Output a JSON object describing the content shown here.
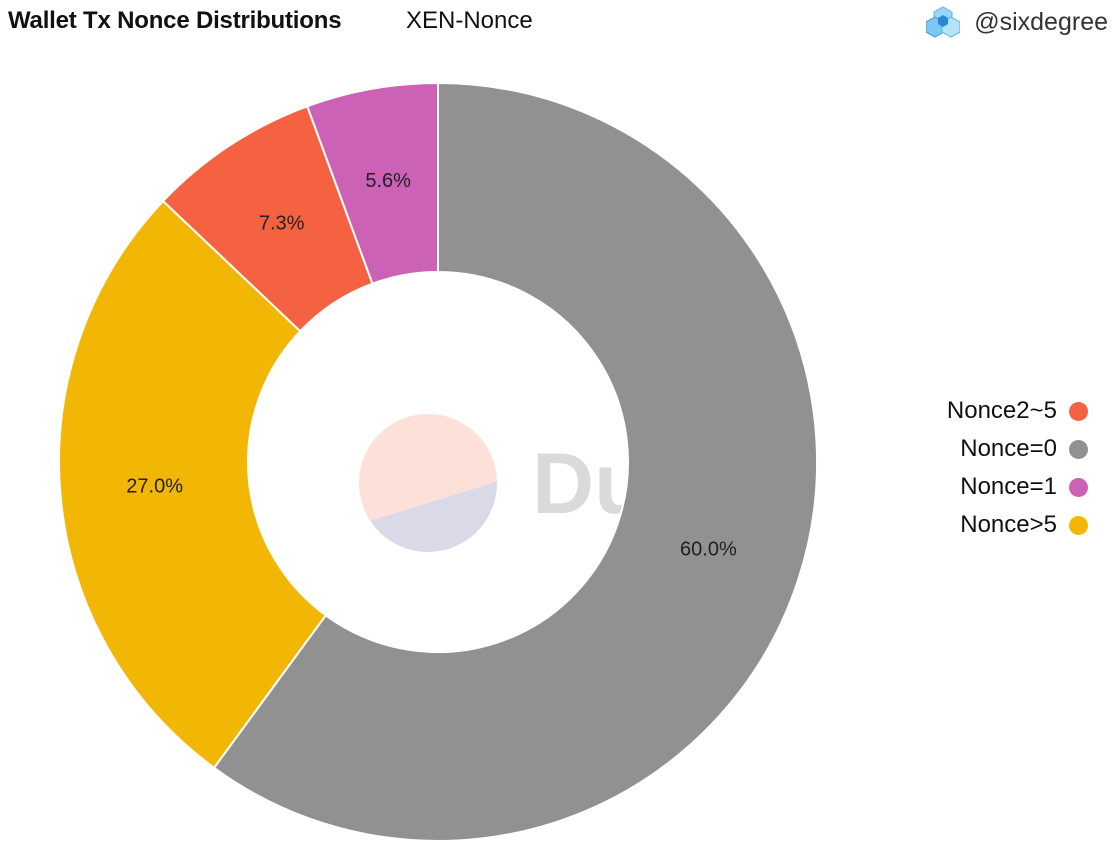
{
  "header": {
    "title": "Wallet Tx Nonce Distributions",
    "subtitle": "XEN-Nonce",
    "attribution": "@sixdegree",
    "attribution_icon": "cube-cluster-icon"
  },
  "watermark": {
    "text": "Dune",
    "logo_colors": [
      "#fde0d8",
      "#d9d9e8"
    ]
  },
  "chart_data": {
    "type": "pie",
    "donut": true,
    "start_angle_deg": 0,
    "direction": "clockwise",
    "slices": [
      {
        "name": "Nonce=0",
        "value": 60.0,
        "label": "60.0%",
        "color": "#919191"
      },
      {
        "name": "Nonce>5",
        "value": 27.0,
        "label": "27.0%",
        "color": "#f2b705"
      },
      {
        "name": "Nonce2~5",
        "value": 7.3,
        "label": "7.3%",
        "color": "#f46241"
      },
      {
        "name": "Nonce=1",
        "value": 5.6,
        "label": "5.6%",
        "color": "#cc62b6"
      }
    ],
    "legend": {
      "position": "right",
      "items": [
        {
          "name": "Nonce2~5",
          "color": "#f46241"
        },
        {
          "name": "Nonce=0",
          "color": "#919191"
        },
        {
          "name": "Nonce=1",
          "color": "#cc62b6"
        },
        {
          "name": "Nonce>5",
          "color": "#f2b705"
        }
      ]
    }
  }
}
